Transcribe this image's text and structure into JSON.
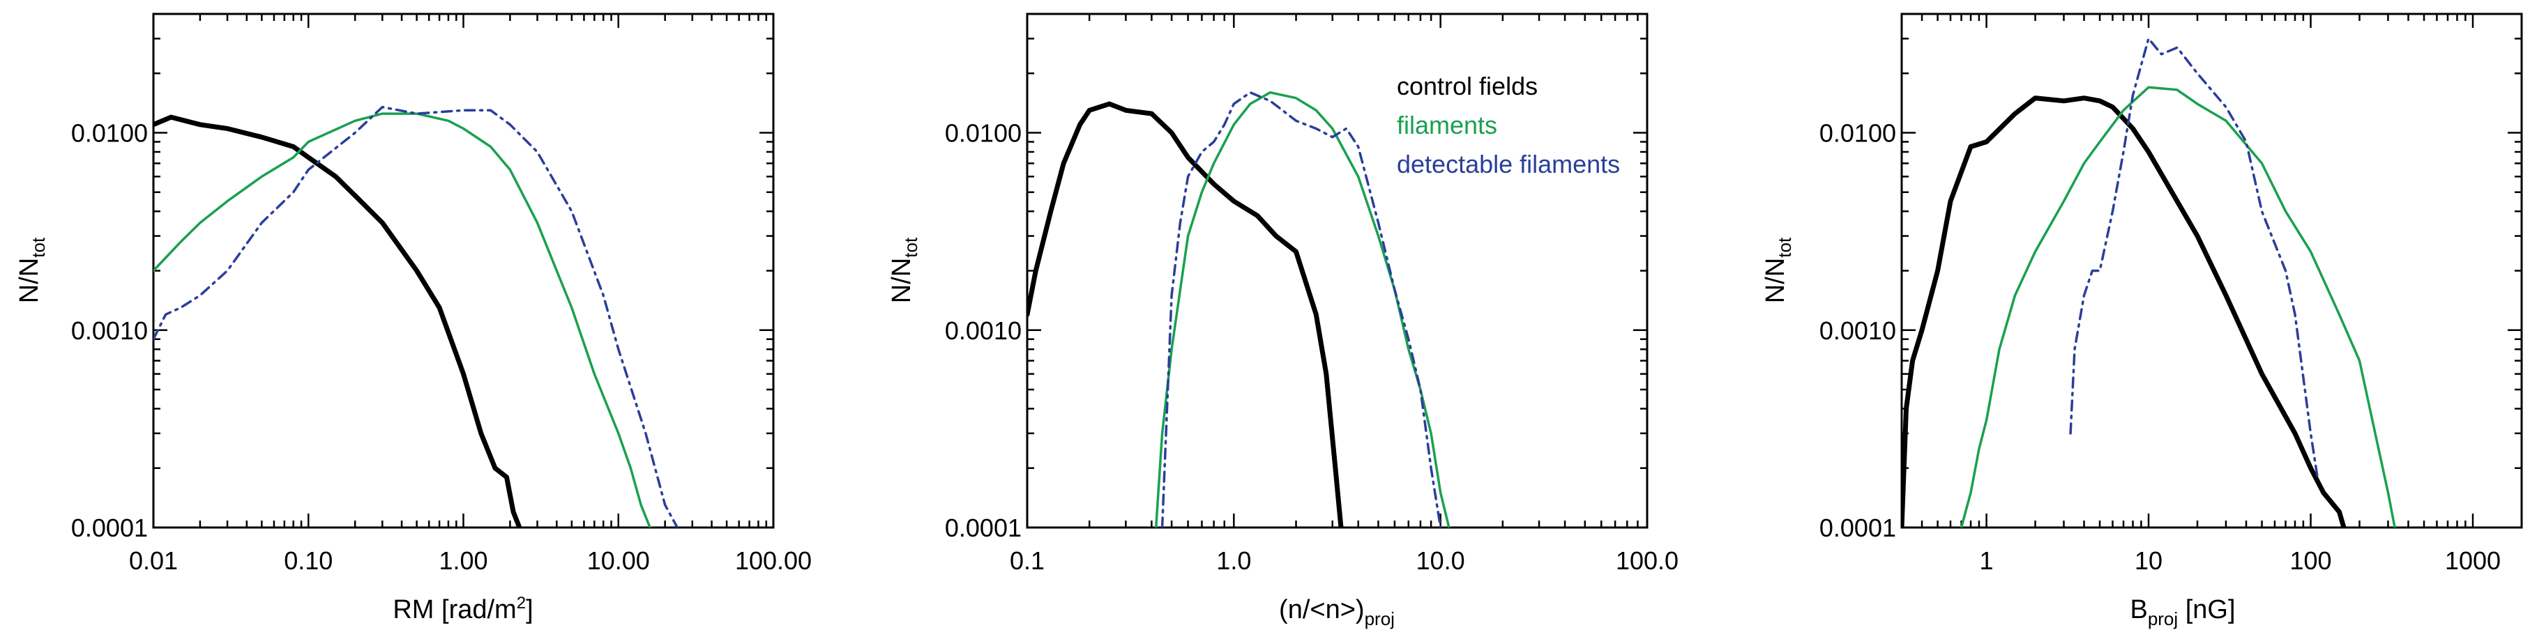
{
  "colors": {
    "control": "#000000",
    "filaments": "#1aa050",
    "detectable": "#2a3f9a"
  },
  "chart_data": [
    {
      "type": "line",
      "xscale": "log",
      "yscale": "log",
      "xlabel": {
        "main": "RM [rad/m",
        "sup": "2",
        "end": "]"
      },
      "ylabel": {
        "main": "N/N",
        "sub": "tot"
      },
      "xlim": [
        0.01,
        100
      ],
      "ylim": [
        0.0001,
        0.04
      ],
      "xticks": [
        0.01,
        0.1,
        1,
        10,
        100
      ],
      "xtick_labels": [
        "0.01",
        "0.10",
        "1.00",
        "10.00",
        "100.00"
      ],
      "yticks": [
        0.0001,
        0.001,
        0.01
      ],
      "ytick_labels": [
        "0.0001",
        "0.0010",
        "0.0100"
      ],
      "series": [
        {
          "name": "control fields",
          "color_key": "control",
          "style": "solid-thick",
          "x": [
            0.01,
            0.013,
            0.02,
            0.03,
            0.05,
            0.08,
            0.1,
            0.15,
            0.2,
            0.3,
            0.5,
            0.7,
            1.0,
            1.3,
            1.6,
            1.9,
            2.1,
            2.3
          ],
          "y": [
            0.011,
            0.012,
            0.011,
            0.0105,
            0.0095,
            0.0085,
            0.0075,
            0.006,
            0.0048,
            0.0035,
            0.002,
            0.0013,
            0.0006,
            0.0003,
            0.0002,
            0.00018,
            0.00012,
            0.0001
          ]
        },
        {
          "name": "filaments",
          "color_key": "filaments",
          "style": "solid",
          "x": [
            0.01,
            0.015,
            0.02,
            0.03,
            0.05,
            0.08,
            0.1,
            0.2,
            0.3,
            0.5,
            0.8,
            1.0,
            1.5,
            2.0,
            3.0,
            4.0,
            5.0,
            7.0,
            10.0,
            12.0,
            14.0,
            16.0
          ],
          "y": [
            0.002,
            0.0028,
            0.0035,
            0.0045,
            0.006,
            0.0075,
            0.009,
            0.0115,
            0.0125,
            0.0125,
            0.0115,
            0.0105,
            0.0085,
            0.0065,
            0.0035,
            0.002,
            0.0013,
            0.0006,
            0.0003,
            0.0002,
            0.00013,
            0.0001
          ]
        },
        {
          "name": "detectable filaments",
          "color_key": "detectable",
          "style": "dashdot",
          "x": [
            0.01,
            0.012,
            0.015,
            0.02,
            0.03,
            0.05,
            0.08,
            0.1,
            0.2,
            0.3,
            0.5,
            1.0,
            1.5,
            2.0,
            3.0,
            5.0,
            8.0,
            10.0,
            15.0,
            20.0,
            24.0
          ],
          "y": [
            0.0009,
            0.0012,
            0.0013,
            0.0015,
            0.002,
            0.0035,
            0.005,
            0.0065,
            0.01,
            0.0135,
            0.0125,
            0.013,
            0.013,
            0.011,
            0.008,
            0.004,
            0.0015,
            0.0008,
            0.0003,
            0.00013,
            0.0001
          ]
        }
      ]
    },
    {
      "type": "line",
      "xscale": "log",
      "yscale": "log",
      "xlabel": {
        "main": "(n/<n>)",
        "sub": "proj"
      },
      "ylabel": {
        "main": "N/N",
        "sub": "tot"
      },
      "xlim": [
        0.1,
        100
      ],
      "ylim": [
        0.0001,
        0.04
      ],
      "xticks": [
        0.1,
        1,
        10,
        100
      ],
      "xtick_labels": [
        "0.1",
        "1.0",
        "10.0",
        "100.0"
      ],
      "yticks": [
        0.0001,
        0.001,
        0.01
      ],
      "ytick_labels": [
        "0.0001",
        "0.0010",
        "0.0100"
      ],
      "legend": {
        "placement": "top-right",
        "entries": [
          "control fields",
          "filaments",
          "detectable filaments"
        ]
      },
      "series": [
        {
          "name": "control fields",
          "color_key": "control",
          "style": "solid-thick",
          "x": [
            0.1,
            0.11,
            0.13,
            0.15,
            0.18,
            0.2,
            0.25,
            0.3,
            0.4,
            0.5,
            0.6,
            0.8,
            1.0,
            1.3,
            1.6,
            2.0,
            2.5,
            2.8,
            3.1,
            3.3
          ],
          "y": [
            0.0012,
            0.002,
            0.004,
            0.007,
            0.011,
            0.013,
            0.014,
            0.013,
            0.0125,
            0.01,
            0.0075,
            0.0055,
            0.0045,
            0.0038,
            0.003,
            0.0025,
            0.0012,
            0.0006,
            0.0002,
            0.0001
          ]
        },
        {
          "name": "filaments",
          "color_key": "filaments",
          "style": "solid",
          "x": [
            0.42,
            0.45,
            0.5,
            0.55,
            0.6,
            0.7,
            0.8,
            1.0,
            1.2,
            1.5,
            2.0,
            2.5,
            3.0,
            4.0,
            5.0,
            6.0,
            7.0,
            8.0,
            9.0,
            10.0,
            11.0
          ],
          "y": [
            0.0001,
            0.0003,
            0.0008,
            0.0016,
            0.003,
            0.005,
            0.007,
            0.011,
            0.014,
            0.016,
            0.015,
            0.013,
            0.0105,
            0.006,
            0.003,
            0.0016,
            0.0008,
            0.0005,
            0.0003,
            0.00015,
            0.0001
          ]
        },
        {
          "name": "detectable filaments",
          "color_key": "detectable",
          "style": "dashdot",
          "x": [
            0.45,
            0.5,
            0.55,
            0.6,
            0.7,
            0.8,
            0.9,
            1.0,
            1.2,
            1.5,
            2.0,
            2.5,
            3.0,
            3.5,
            4.0,
            5.0,
            6.0,
            7.0,
            8.0,
            9.0,
            10.0
          ],
          "y": [
            0.0001,
            0.0015,
            0.0035,
            0.006,
            0.008,
            0.009,
            0.011,
            0.014,
            0.016,
            0.0145,
            0.0115,
            0.0105,
            0.0095,
            0.0105,
            0.0085,
            0.0035,
            0.0016,
            0.0009,
            0.0005,
            0.0002,
            0.0001
          ]
        }
      ]
    },
    {
      "type": "line",
      "xscale": "log",
      "yscale": "log",
      "xlabel": {
        "main": "B",
        "sub": "proj",
        "end": " [nG]"
      },
      "ylabel": {
        "main": "N/N",
        "sub": "tot"
      },
      "xlim": [
        0.3,
        2000
      ],
      "ylim": [
        0.0001,
        0.04
      ],
      "xticks": [
        1,
        10,
        100,
        1000
      ],
      "xtick_labels": [
        "1",
        "10",
        "100",
        "1000"
      ],
      "yticks": [
        0.0001,
        0.001,
        0.01
      ],
      "ytick_labels": [
        "0.0001",
        "0.0010",
        "0.0100"
      ],
      "series": [
        {
          "name": "control fields",
          "color_key": "control",
          "style": "solid-thick",
          "x": [
            0.3,
            0.32,
            0.35,
            0.4,
            0.5,
            0.6,
            0.8,
            1.0,
            1.5,
            2.0,
            3.0,
            4.0,
            5.0,
            6.0,
            8.0,
            10.0,
            15.0,
            20.0,
            30.0,
            50.0,
            80.0,
            100.0,
            120.0,
            150.0,
            160.0
          ],
          "y": [
            0.0001,
            0.0004,
            0.0007,
            0.001,
            0.002,
            0.0045,
            0.0085,
            0.009,
            0.0125,
            0.015,
            0.0145,
            0.015,
            0.0145,
            0.0135,
            0.0105,
            0.008,
            0.0045,
            0.003,
            0.0015,
            0.0006,
            0.0003,
            0.0002,
            0.00015,
            0.00012,
            0.0001
          ]
        },
        {
          "name": "filaments",
          "color_key": "filaments",
          "style": "solid",
          "x": [
            0.7,
            0.8,
            0.9,
            1.0,
            1.2,
            1.5,
            2.0,
            3.0,
            4.0,
            5.0,
            7.0,
            10.0,
            15.0,
            20.0,
            30.0,
            50.0,
            70.0,
            100.0,
            150.0,
            200.0,
            250.0,
            300.0,
            330.0
          ],
          "y": [
            0.0001,
            0.00015,
            0.00025,
            0.00035,
            0.0008,
            0.0015,
            0.0025,
            0.0045,
            0.007,
            0.009,
            0.013,
            0.017,
            0.0165,
            0.014,
            0.0115,
            0.007,
            0.004,
            0.0025,
            0.0012,
            0.0007,
            0.0003,
            0.00015,
            0.0001
          ]
        },
        {
          "name": "detectable filaments",
          "color_key": "detectable",
          "style": "dashdot",
          "x": [
            3.3,
            3.5,
            4.0,
            4.5,
            5.0,
            6.0,
            7.0,
            8.0,
            9.0,
            10.0,
            12.0,
            15.0,
            20.0,
            30.0,
            40.0,
            50.0,
            70.0,
            80.0,
            100.0,
            110.0
          ],
          "y": [
            0.0003,
            0.0008,
            0.0015,
            0.002,
            0.002,
            0.004,
            0.008,
            0.0155,
            0.022,
            0.03,
            0.025,
            0.027,
            0.02,
            0.0135,
            0.009,
            0.004,
            0.002,
            0.0012,
            0.0003,
            0.00018
          ]
        }
      ]
    }
  ]
}
